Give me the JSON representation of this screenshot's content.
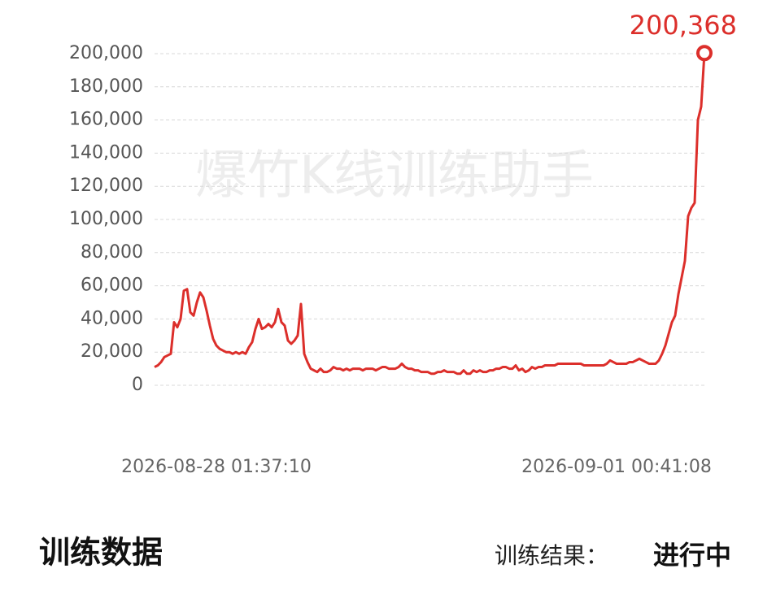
{
  "chart_data": {
    "type": "line",
    "watermark": "爆竹K线训练助手",
    "categories": [
      null,
      null,
      null,
      null,
      null,
      null,
      null,
      null,
      null,
      null,
      null,
      null,
      null,
      null,
      null,
      null,
      null,
      null,
      null,
      "2026-08-28 01:37:10",
      null,
      null,
      null,
      null,
      null,
      null,
      null,
      null,
      null,
      null,
      null,
      null,
      null,
      null,
      null,
      null,
      null,
      null,
      null,
      null,
      null,
      null,
      null,
      null,
      null,
      null,
      null,
      null,
      null,
      null,
      null,
      null,
      null,
      null,
      null,
      null,
      null,
      null,
      null,
      null,
      null,
      null,
      null,
      null,
      null,
      null,
      null,
      null,
      null,
      null,
      null,
      null,
      null,
      null,
      null,
      null,
      null,
      null,
      null,
      null,
      null,
      null,
      null,
      null,
      null,
      null,
      null,
      null,
      null,
      null,
      null,
      null,
      null,
      null,
      null,
      null,
      null,
      null,
      null,
      null,
      null,
      null,
      null,
      null,
      null,
      null,
      null,
      null,
      null,
      null,
      null,
      null,
      null,
      null,
      null,
      null,
      null,
      null,
      null,
      null,
      null,
      null,
      null,
      null,
      null,
      null,
      null,
      null,
      null,
      null,
      null,
      null,
      null,
      null,
      null,
      null,
      null,
      null,
      null,
      null,
      null,
      null,
      "2026-09-01 00:41:08",
      null,
      null,
      null,
      null,
      null,
      null,
      null,
      null,
      null,
      null,
      null,
      null,
      null,
      null,
      null,
      null,
      null,
      null,
      null,
      null,
      null,
      null,
      null,
      null,
      null,
      null,
      null
    ],
    "values": [
      11000,
      12000,
      14000,
      17000,
      18000,
      19000,
      38000,
      35000,
      40000,
      57000,
      58000,
      44000,
      42000,
      50000,
      56000,
      53000,
      45000,
      36000,
      28000,
      24000,
      22000,
      21000,
      20000,
      20000,
      19000,
      20000,
      19000,
      20000,
      19000,
      23000,
      26000,
      34000,
      40000,
      34000,
      35000,
      37000,
      35000,
      38000,
      46000,
      38000,
      36000,
      27000,
      25000,
      27000,
      30000,
      49000,
      19000,
      14000,
      10000,
      9000,
      8000,
      10000,
      8000,
      8000,
      9000,
      11000,
      10000,
      10000,
      9000,
      10000,
      9000,
      10000,
      10000,
      10000,
      9000,
      10000,
      10000,
      10000,
      9000,
      10000,
      11000,
      11000,
      10000,
      10000,
      10000,
      11000,
      13000,
      11000,
      10000,
      10000,
      9000,
      9000,
      8000,
      8000,
      8000,
      7000,
      7000,
      8000,
      8000,
      9000,
      8000,
      8000,
      8000,
      7000,
      7000,
      9000,
      7000,
      7000,
      9000,
      8000,
      9000,
      8000,
      8000,
      9000,
      9000,
      10000,
      10000,
      11000,
      11000,
      10000,
      10000,
      12000,
      9000,
      10000,
      8000,
      9000,
      11000,
      10000,
      11000,
      11000,
      12000,
      12000,
      12000,
      12000,
      13000,
      13000,
      13000,
      13000,
      13000,
      13000,
      13000,
      13000,
      12000,
      12000,
      12000,
      12000,
      12000,
      12000,
      12000,
      13000,
      15000,
      14000,
      13000,
      13000,
      13000,
      13000,
      14000,
      14000,
      15000,
      16000,
      15000,
      14000,
      13000,
      13000,
      13000,
      15000,
      19000,
      24000,
      31000,
      38000,
      42000,
      55000,
      65000,
      75000,
      102000,
      107000,
      110000,
      160000,
      168000,
      200368
    ],
    "value_labels": [
      null,
      null,
      null,
      null,
      null,
      null,
      null,
      null,
      null,
      null,
      null,
      null,
      null,
      null,
      null,
      null,
      null,
      null,
      null,
      null,
      null,
      null,
      null,
      null,
      null,
      null,
      null,
      null,
      null,
      null,
      null,
      null,
      null,
      null,
      null,
      null,
      null,
      null,
      null,
      null,
      null,
      null,
      null,
      null,
      null,
      null,
      null,
      null,
      null,
      null,
      null,
      null,
      null,
      null,
      null,
      null,
      null,
      null,
      null,
      null,
      null,
      null,
      null,
      null,
      null,
      null,
      null,
      null,
      null,
      null,
      null,
      null,
      null,
      null,
      null,
      null,
      null,
      null,
      null,
      null,
      null,
      null,
      null,
      null,
      null,
      null,
      null,
      null,
      null,
      null,
      null,
      null,
      null,
      null,
      null,
      null,
      null,
      null,
      null,
      null,
      null,
      null,
      null,
      null,
      null,
      null,
      null,
      null,
      null,
      null,
      null,
      null,
      null,
      null,
      null,
      null,
      null,
      null,
      null,
      null,
      null,
      null,
      null,
      null,
      null,
      null,
      null,
      null,
      null,
      null,
      null,
      null,
      null,
      null,
      null,
      null,
      null,
      null,
      null,
      null,
      null,
      null,
      null,
      null,
      null,
      null,
      null,
      null,
      null,
      null,
      null,
      null,
      null,
      null,
      null,
      null,
      null,
      null,
      null,
      null,
      null,
      null,
      null,
      null,
      null,
      null,
      null,
      null,
      null,
      "200,368"
    ],
    "color": "#dc2f2b",
    "ylim": [
      0,
      200000
    ],
    "yticks": [
      0,
      {
        "value": 20000,
        "label": "20,000"
      },
      {
        "value": 40000,
        "label": "40,000"
      },
      {
        "value": 60000,
        "label": "60,000"
      },
      {
        "value": 80000,
        "label": "80,000"
      },
      {
        "value": 100000,
        "label": "100,000"
      },
      {
        "value": 120000,
        "label": "120,000"
      },
      {
        "value": 140000,
        "label": "140,000"
      },
      {
        "value": 160000,
        "label": "160,000"
      },
      {
        "value": 180000,
        "label": "180,000"
      },
      {
        "value": 200000,
        "label": "200,000"
      }
    ],
    "grid": true
  },
  "footer": {
    "title": "训练数据",
    "result_label": "训练结果：",
    "result_value": "进行中"
  }
}
